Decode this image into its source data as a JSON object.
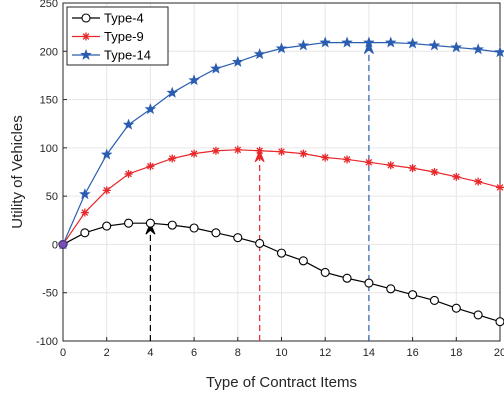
{
  "chart_data": {
    "type": "line",
    "xlabel": "Type of Contract Items",
    "ylabel": "Utility of Vehicles",
    "xlim": [
      0,
      20
    ],
    "ylim": [
      -100,
      250
    ],
    "xticks": [
      0,
      2,
      4,
      6,
      8,
      10,
      12,
      14,
      16,
      18,
      20
    ],
    "yticks": [
      -100,
      -50,
      0,
      50,
      100,
      150,
      200,
      250
    ],
    "grid": true,
    "legend_position": "top-left",
    "x": [
      0,
      1,
      2,
      3,
      4,
      5,
      6,
      7,
      8,
      9,
      10,
      11,
      12,
      13,
      14,
      15,
      16,
      17,
      18,
      19,
      20
    ],
    "series": [
      {
        "name": "Type-4",
        "color": "#000000",
        "marker": "circle",
        "values": [
          0,
          12,
          19,
          22,
          22,
          20,
          17,
          12,
          7,
          1,
          -9,
          -17,
          -29,
          -35,
          -40,
          -46,
          -52,
          -58,
          -66,
          -73,
          -80
        ]
      },
      {
        "name": "Type-9",
        "color": "#e8282b",
        "marker": "asterisk",
        "values": [
          0,
          33,
          56,
          73,
          81,
          89,
          94,
          97,
          98,
          97,
          96,
          94,
          90,
          88,
          85,
          82,
          79,
          75,
          70,
          65,
          59
        ]
      },
      {
        "name": "Type-14",
        "color": "#2a5db0",
        "marker": "star",
        "values": [
          0,
          52,
          93,
          124,
          140,
          157,
          170,
          182,
          189,
          197,
          203,
          206,
          209,
          209,
          209,
          209,
          208,
          206,
          204,
          202,
          199
        ]
      }
    ],
    "annotations": [
      {
        "x": 4,
        "y": 22,
        "color": "#000000"
      },
      {
        "x": 9,
        "y": 97,
        "color": "#e8282b"
      },
      {
        "x": 14,
        "y": 209,
        "color": "#2a5db0"
      }
    ]
  }
}
